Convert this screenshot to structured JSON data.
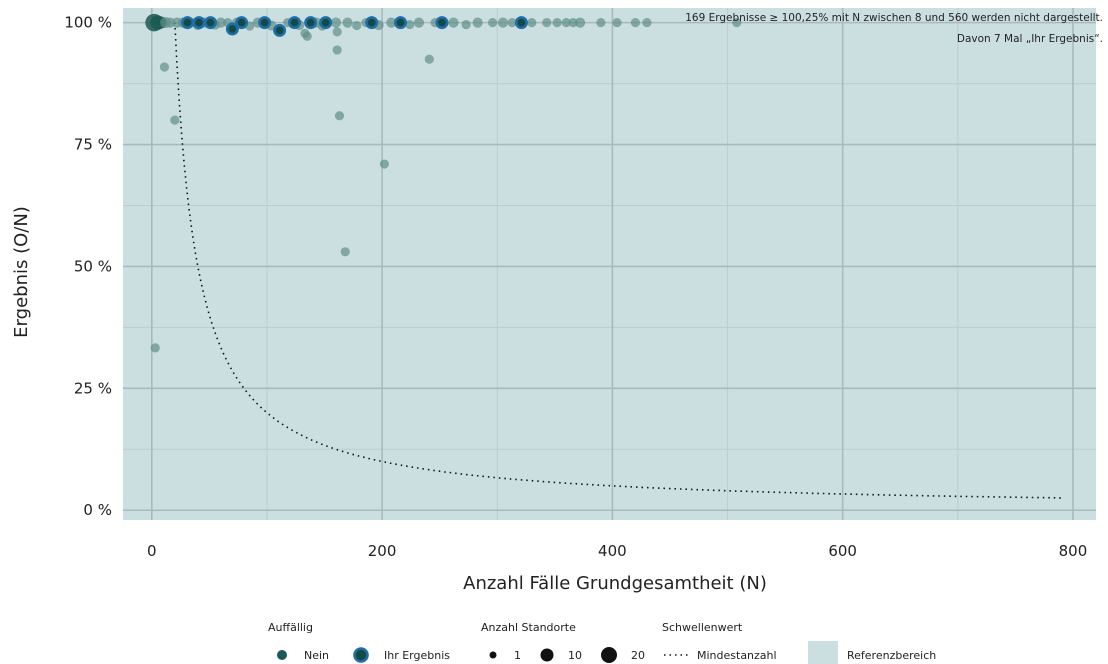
{
  "colors": {
    "panel": "#cbdfe1",
    "grid_major": "#a9b9bd",
    "grid_minor": "#bccdd0",
    "point_nein": "#1c5954",
    "point_nein_faded": "#5f8f8a",
    "ihr_ergebnis_ring": "#1f6fa6",
    "ihr_ergebnis_fill": "#124a47",
    "threshold": "#111111"
  },
  "chart_data": {
    "type": "scatter",
    "xlabel": "Anzahl Fälle Grundgesamtheit (N)",
    "ylabel": "Ergebnis (O/N)",
    "xlim": [
      -25,
      820
    ],
    "ylim": [
      -2,
      103
    ],
    "x_ticks": [
      0,
      200,
      400,
      600,
      800
    ],
    "x_tick_labels": [
      "0",
      "200",
      "400",
      "600",
      "800"
    ],
    "y_ticks": [
      0,
      25,
      50,
      75,
      100
    ],
    "y_tick_labels": [
      "0 %",
      "25 %",
      "50 %",
      "75 %",
      "100 %"
    ],
    "grid": true,
    "reference_range": [
      0,
      100
    ],
    "annotation_lines": [
      "169 Ergebnisse ≥ 100,25% mit N zwischen 8 und 560 werden nicht dargestellt.",
      "Davon 7 Mal „Ihr Ergebnis“."
    ],
    "series": [
      {
        "name": "Nein",
        "points": [
          {
            "x": 2,
            "y": 100,
            "n": 20
          },
          {
            "x": 3,
            "y": 33.3,
            "n": 1
          },
          {
            "x": 5,
            "y": 100,
            "n": 10
          },
          {
            "x": 8,
            "y": 100,
            "n": 5
          },
          {
            "x": 11,
            "y": 90.9,
            "n": 1
          },
          {
            "x": 12,
            "y": 100,
            "n": 3
          },
          {
            "x": 16,
            "y": 100,
            "n": 2
          },
          {
            "x": 20,
            "y": 80,
            "n": 1
          },
          {
            "x": 22,
            "y": 100,
            "n": 2
          },
          {
            "x": 27,
            "y": 100,
            "n": 2
          },
          {
            "x": 35,
            "y": 100,
            "n": 1
          },
          {
            "x": 40,
            "y": 99.5,
            "n": 2
          },
          {
            "x": 46,
            "y": 100,
            "n": 2
          },
          {
            "x": 55,
            "y": 99.5,
            "n": 1
          },
          {
            "x": 60,
            "y": 100,
            "n": 2
          },
          {
            "x": 66,
            "y": 100,
            "n": 1
          },
          {
            "x": 74,
            "y": 100,
            "n": 2
          },
          {
            "x": 85,
            "y": 99.3,
            "n": 1
          },
          {
            "x": 92,
            "y": 100,
            "n": 2
          },
          {
            "x": 104,
            "y": 99.4,
            "n": 2
          },
          {
            "x": 118,
            "y": 100,
            "n": 1
          },
          {
            "x": 128,
            "y": 99.5,
            "n": 2
          },
          {
            "x": 133,
            "y": 97.8,
            "n": 1
          },
          {
            "x": 135,
            "y": 97.2,
            "n": 1
          },
          {
            "x": 143,
            "y": 100,
            "n": 2
          },
          {
            "x": 148,
            "y": 99.3,
            "n": 1
          },
          {
            "x": 160,
            "y": 100,
            "n": 2
          },
          {
            "x": 161,
            "y": 98.1,
            "n": 1
          },
          {
            "x": 161,
            "y": 94.4,
            "n": 1
          },
          {
            "x": 163,
            "y": 80.9,
            "n": 1
          },
          {
            "x": 168,
            "y": 53,
            "n": 1
          },
          {
            "x": 170,
            "y": 100,
            "n": 2
          },
          {
            "x": 178,
            "y": 99.4,
            "n": 1
          },
          {
            "x": 186,
            "y": 100,
            "n": 1
          },
          {
            "x": 197,
            "y": 99.5,
            "n": 2
          },
          {
            "x": 202,
            "y": 71,
            "n": 1
          },
          {
            "x": 208,
            "y": 100,
            "n": 2
          },
          {
            "x": 224,
            "y": 99.6,
            "n": 1
          },
          {
            "x": 232,
            "y": 100,
            "n": 2
          },
          {
            "x": 241,
            "y": 92.5,
            "n": 1
          },
          {
            "x": 246,
            "y": 100,
            "n": 1
          },
          {
            "x": 262,
            "y": 100,
            "n": 2
          },
          {
            "x": 273,
            "y": 99.6,
            "n": 1
          },
          {
            "x": 283,
            "y": 100,
            "n": 2
          },
          {
            "x": 296,
            "y": 100,
            "n": 1
          },
          {
            "x": 305,
            "y": 100,
            "n": 2
          },
          {
            "x": 313,
            "y": 100,
            "n": 1
          },
          {
            "x": 330,
            "y": 100,
            "n": 1
          },
          {
            "x": 343,
            "y": 100,
            "n": 1
          },
          {
            "x": 352,
            "y": 100,
            "n": 1
          },
          {
            "x": 360,
            "y": 100,
            "n": 1
          },
          {
            "x": 366,
            "y": 100,
            "n": 1
          },
          {
            "x": 372,
            "y": 100,
            "n": 2
          },
          {
            "x": 390,
            "y": 100,
            "n": 1
          },
          {
            "x": 404,
            "y": 100,
            "n": 1
          },
          {
            "x": 420,
            "y": 100,
            "n": 1
          },
          {
            "x": 430,
            "y": 100,
            "n": 1
          },
          {
            "x": 508,
            "y": 100,
            "n": 1
          }
        ]
      },
      {
        "name": "Ihr Ergebnis",
        "points": [
          {
            "x": 31,
            "y": 100,
            "n": 5
          },
          {
            "x": 41,
            "y": 100,
            "n": 5
          },
          {
            "x": 51,
            "y": 100,
            "n": 5
          },
          {
            "x": 70,
            "y": 98.7,
            "n": 5
          },
          {
            "x": 78,
            "y": 100,
            "n": 5
          },
          {
            "x": 98,
            "y": 100,
            "n": 5
          },
          {
            "x": 111,
            "y": 98.4,
            "n": 5
          },
          {
            "x": 124,
            "y": 100,
            "n": 5
          },
          {
            "x": 138,
            "y": 100,
            "n": 5
          },
          {
            "x": 151,
            "y": 100,
            "n": 5
          },
          {
            "x": 191,
            "y": 100,
            "n": 5
          },
          {
            "x": 216,
            "y": 100,
            "n": 5
          },
          {
            "x": 252,
            "y": 100,
            "n": 5
          },
          {
            "x": 321,
            "y": 100,
            "n": 5
          }
        ]
      }
    ],
    "threshold": {
      "name": "Mindestanzahl",
      "formula": "y = 2000 / x",
      "x_range": [
        20,
        790
      ]
    },
    "legend": {
      "placement": "bottom",
      "groups": [
        {
          "title": "Auffällig",
          "items": [
            "Nein",
            "Ihr Ergebnis"
          ]
        },
        {
          "title": "Anzahl Standorte",
          "items": [
            "1",
            "10",
            "20"
          ]
        },
        {
          "title": "Schwellenwert",
          "items": [
            "Mindestanzahl"
          ]
        },
        {
          "title": "",
          "items": [
            "Referenzbereich"
          ]
        }
      ]
    }
  }
}
